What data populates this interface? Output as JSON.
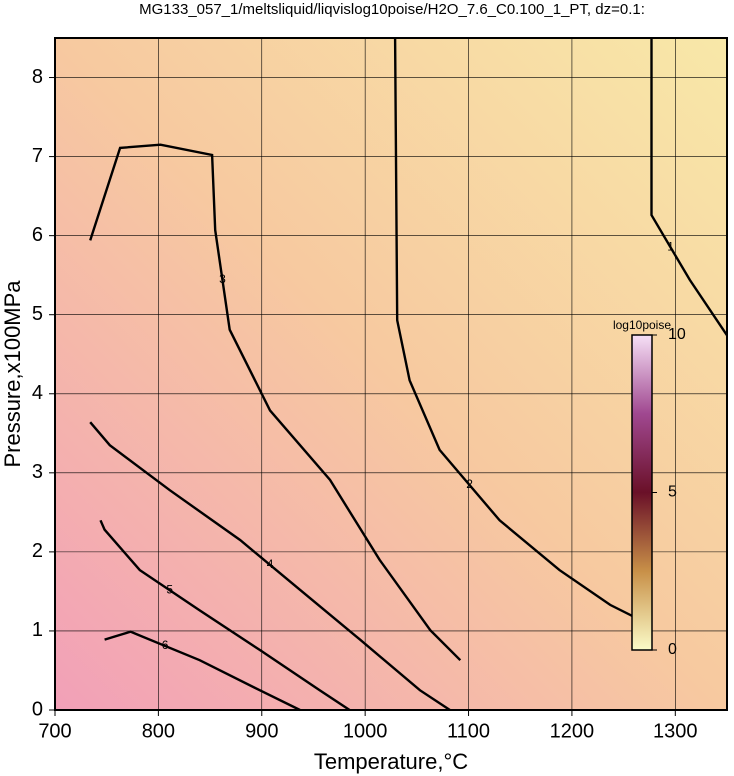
{
  "chart_data": {
    "type": "contour",
    "title": "MG133_057_1/meltsliquid/liqvislog10poise/H2O_7.6_C0.100_1_PT, dz=0.1:",
    "xlabel": "Temperature,°C",
    "ylabel": "Pressure,x100MPa",
    "xlim": [
      700,
      1350
    ],
    "ylim": [
      0,
      8.5
    ],
    "xticks": [
      700,
      800,
      900,
      1000,
      1100,
      1200,
      1300
    ],
    "yticks": [
      0,
      1,
      2,
      3,
      4,
      5,
      6,
      7,
      8
    ],
    "grid": true,
    "background_colors": [
      "#f2a0b8",
      "#f7c9a0",
      "#f8e8a8"
    ],
    "contours": [
      {
        "level": 1,
        "x": [
          1277,
          1277,
          1314,
          1350
        ],
        "y": [
          8.5,
          6.26,
          5.44,
          4.74
        ]
      },
      {
        "level": 2,
        "x": [
          1029,
          1031,
          1043,
          1072,
          1130,
          1188,
          1237,
          1266
        ],
        "y": [
          8.5,
          4.93,
          4.17,
          3.29,
          2.4,
          1.77,
          1.33,
          1.14
        ]
      },
      {
        "level": 3,
        "x": [
          734,
          763,
          802,
          852,
          855,
          869,
          908,
          966,
          1014,
          1063,
          1092
        ],
        "y": [
          5.94,
          7.11,
          7.15,
          7.02,
          6.07,
          4.81,
          3.79,
          2.91,
          1.9,
          1.01,
          0.63
        ]
      },
      {
        "level": 4,
        "x": [
          734,
          753,
          811,
          879,
          937,
          995,
          1053,
          1082
        ],
        "y": [
          3.64,
          3.35,
          2.78,
          2.15,
          1.52,
          0.89,
          0.25,
          0
        ]
      },
      {
        "level": 5,
        "x": [
          744,
          748,
          782,
          840,
          898,
          956,
          985
        ],
        "y": [
          2.4,
          2.28,
          1.77,
          1.26,
          0.76,
          0.25,
          0
        ]
      },
      {
        "level": 6,
        "x": [
          748,
          773,
          840,
          898,
          937
        ],
        "y": [
          0.89,
          0.99,
          0.63,
          0.25,
          0
        ]
      }
    ],
    "colorbar": {
      "label": "log10poise",
      "lim": [
        0,
        10
      ],
      "ticks": [
        0,
        5,
        10
      ],
      "colors": [
        "#fbfbc8",
        "#c89048",
        "#6a1028",
        "#a04890",
        "#f6e0f6"
      ]
    }
  }
}
